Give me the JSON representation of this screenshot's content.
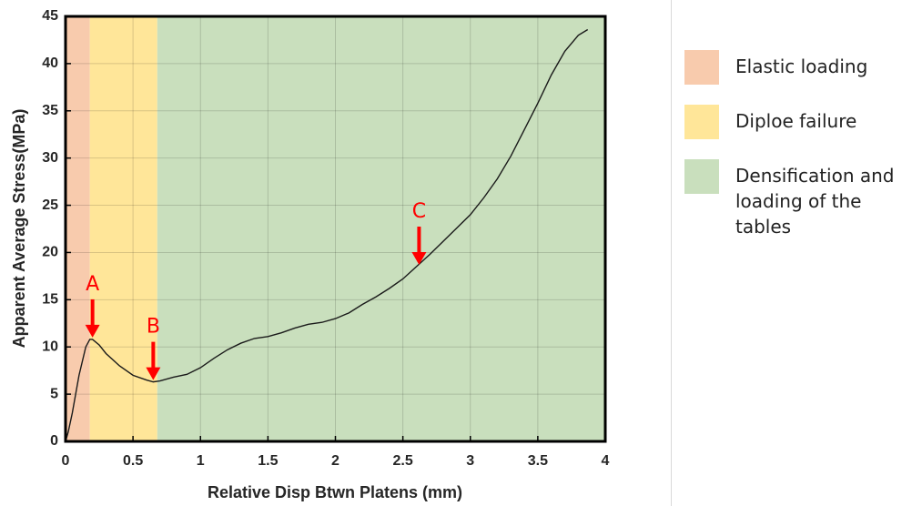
{
  "chart_data": {
    "type": "line",
    "x_label": "Relative Disp Btwn Platens (mm)",
    "y_label": "Apparent Average Stress(MPa)",
    "x": [
      0,
      0.02,
      0.05,
      0.1,
      0.15,
      0.18,
      0.2,
      0.25,
      0.3,
      0.4,
      0.5,
      0.6,
      0.65,
      0.7,
      0.8,
      0.9,
      1.0,
      1.1,
      1.2,
      1.3,
      1.4,
      1.5,
      1.6,
      1.7,
      1.8,
      1.9,
      2.0,
      2.1,
      2.2,
      2.3,
      2.4,
      2.5,
      2.6,
      2.7,
      2.8,
      2.9,
      3.0,
      3.1,
      3.2,
      3.3,
      3.4,
      3.5,
      3.6,
      3.7,
      3.8,
      3.87
    ],
    "values": [
      0,
      1,
      3,
      7,
      10,
      10.8,
      10.8,
      10.2,
      9.3,
      8,
      7,
      6.5,
      6.3,
      6.4,
      6.8,
      7.1,
      7.8,
      8.8,
      9.7,
      10.4,
      10.9,
      11.1,
      11.5,
      12,
      12.4,
      12.6,
      13,
      13.6,
      14.5,
      15.3,
      16.2,
      17.2,
      18.5,
      19.8,
      21.2,
      22.6,
      24,
      25.8,
      27.8,
      30.2,
      33,
      35.8,
      38.8,
      41.3,
      43,
      43.6
    ],
    "color": "#1a1a1a",
    "xlim": [
      0,
      4
    ],
    "ylim": [
      0,
      45
    ],
    "xticks": [
      0,
      0.5,
      1,
      1.5,
      2,
      2.5,
      3,
      3.5,
      4
    ],
    "yticks": [
      0,
      5,
      10,
      15,
      20,
      25,
      30,
      35,
      40,
      45
    ],
    "grid": true,
    "regions": [
      {
        "name": "Elastic loading",
        "color": "#f8cbad",
        "start": 0,
        "end": 0.18
      },
      {
        "name": "Diploe failure",
        "color": "#ffe699",
        "start": 0.18,
        "end": 0.68
      },
      {
        "name": "Densification and loading of the tables",
        "color": "#c9dfbd",
        "start": 0.68,
        "end": 4
      }
    ],
    "annotations": [
      {
        "text": "A",
        "x": 0.2,
        "y": 10.8
      },
      {
        "text": "B",
        "x": 0.65,
        "y": 6.3
      },
      {
        "text": "C",
        "x": 2.62,
        "y": 18.5
      }
    ],
    "annotation_color": "#ff0000"
  }
}
